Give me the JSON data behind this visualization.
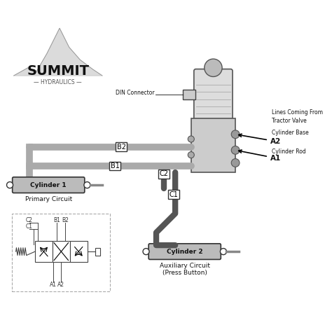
{
  "bg_color": "#ffffff",
  "labels": {
    "B2": "B2",
    "B1": "B1",
    "C2": "C2",
    "C1": "C1",
    "A2": "A2",
    "A1": "A1",
    "DIN_Connector": "DIN Connector",
    "Lines_Coming": "Lines Coming From",
    "Tractor_Valve": "Tractor Valve",
    "Cylinder_Base": "Cylinder Base",
    "Cylinder_Rod": "Cylinder Rod",
    "Cylinder1": "Cylinder 1",
    "Cylinder2": "Cylinder 2",
    "Primary_Circuit": "Primary Circuit",
    "Auxiliary_Circuit": "Auxiliary Circuit",
    "Press_Button": "(Press Button)",
    "SUMMIT": "SUMMIT",
    "HYDRAULICS": "— HYDRAULICS —"
  },
  "colors": {
    "line_gray": "#aaaaaa",
    "line_dark": "#555555",
    "text_dark": "#111111",
    "text_medium": "#444444",
    "box_stroke": "#333333",
    "cylinder_fill": "#bbbbbb",
    "cylinder_dark": "#888888",
    "arrow_black": "#000000",
    "valve_gray": "#999999",
    "logo_mountain": "#888888",
    "schematic_line": "#555555",
    "spring_color": "#555555"
  }
}
